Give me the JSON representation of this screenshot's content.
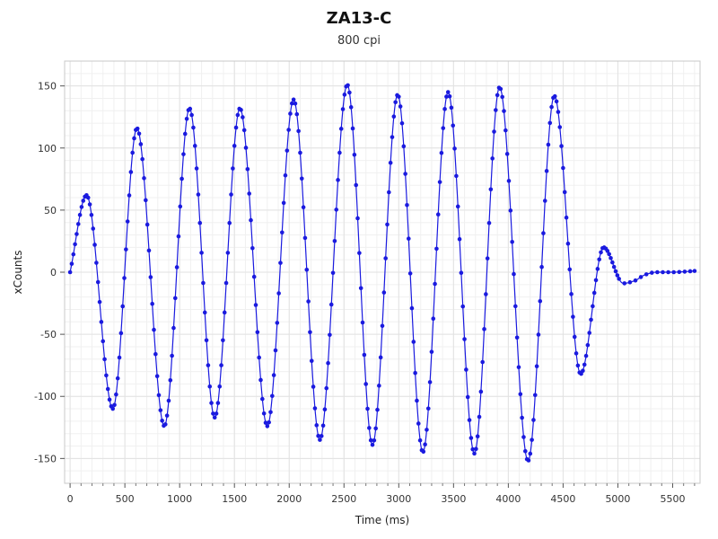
{
  "chart_data": {
    "type": "line",
    "title": "ZA13-C",
    "subtitle": "800 cpi",
    "xlabel": "Time (ms)",
    "ylabel": "xCounts",
    "xlim": [
      -50,
      5750
    ],
    "ylim": [
      -170,
      170
    ],
    "x_ticks": [
      0,
      500,
      1000,
      1500,
      2000,
      2500,
      3000,
      3500,
      4000,
      4500,
      5000,
      5500
    ],
    "y_ticks": [
      150,
      100,
      50,
      0,
      -50,
      -100,
      -150
    ],
    "grid": true,
    "legend": "none",
    "color": "#1a1adf",
    "series": [
      {
        "values": [
          {
            "x": 0,
            "y": 0
          },
          {
            "x": 150,
            "y": 62
          },
          {
            "x": 390,
            "y": -110
          },
          {
            "x": 610,
            "y": 116
          },
          {
            "x": 860,
            "y": -124
          },
          {
            "x": 1090,
            "y": 132
          },
          {
            "x": 1320,
            "y": -117
          },
          {
            "x": 1550,
            "y": 132
          },
          {
            "x": 1800,
            "y": -124
          },
          {
            "x": 2040,
            "y": 139
          },
          {
            "x": 2280,
            "y": -135
          },
          {
            "x": 2530,
            "y": 151
          },
          {
            "x": 2760,
            "y": -139
          },
          {
            "x": 2990,
            "y": 143
          },
          {
            "x": 3220,
            "y": -145
          },
          {
            "x": 3450,
            "y": 145
          },
          {
            "x": 3690,
            "y": -146
          },
          {
            "x": 3920,
            "y": 149
          },
          {
            "x": 4180,
            "y": -152
          },
          {
            "x": 4420,
            "y": 142
          },
          {
            "x": 4660,
            "y": -82
          },
          {
            "x": 4870,
            "y": 20
          },
          {
            "x": 5050,
            "y": -9
          },
          {
            "x": 5150,
            "y": -7
          },
          {
            "x": 5250,
            "y": -2
          },
          {
            "x": 5350,
            "y": 0
          },
          {
            "x": 5500,
            "y": 0
          },
          {
            "x": 5700,
            "y": 1
          }
        ]
      }
    ]
  }
}
